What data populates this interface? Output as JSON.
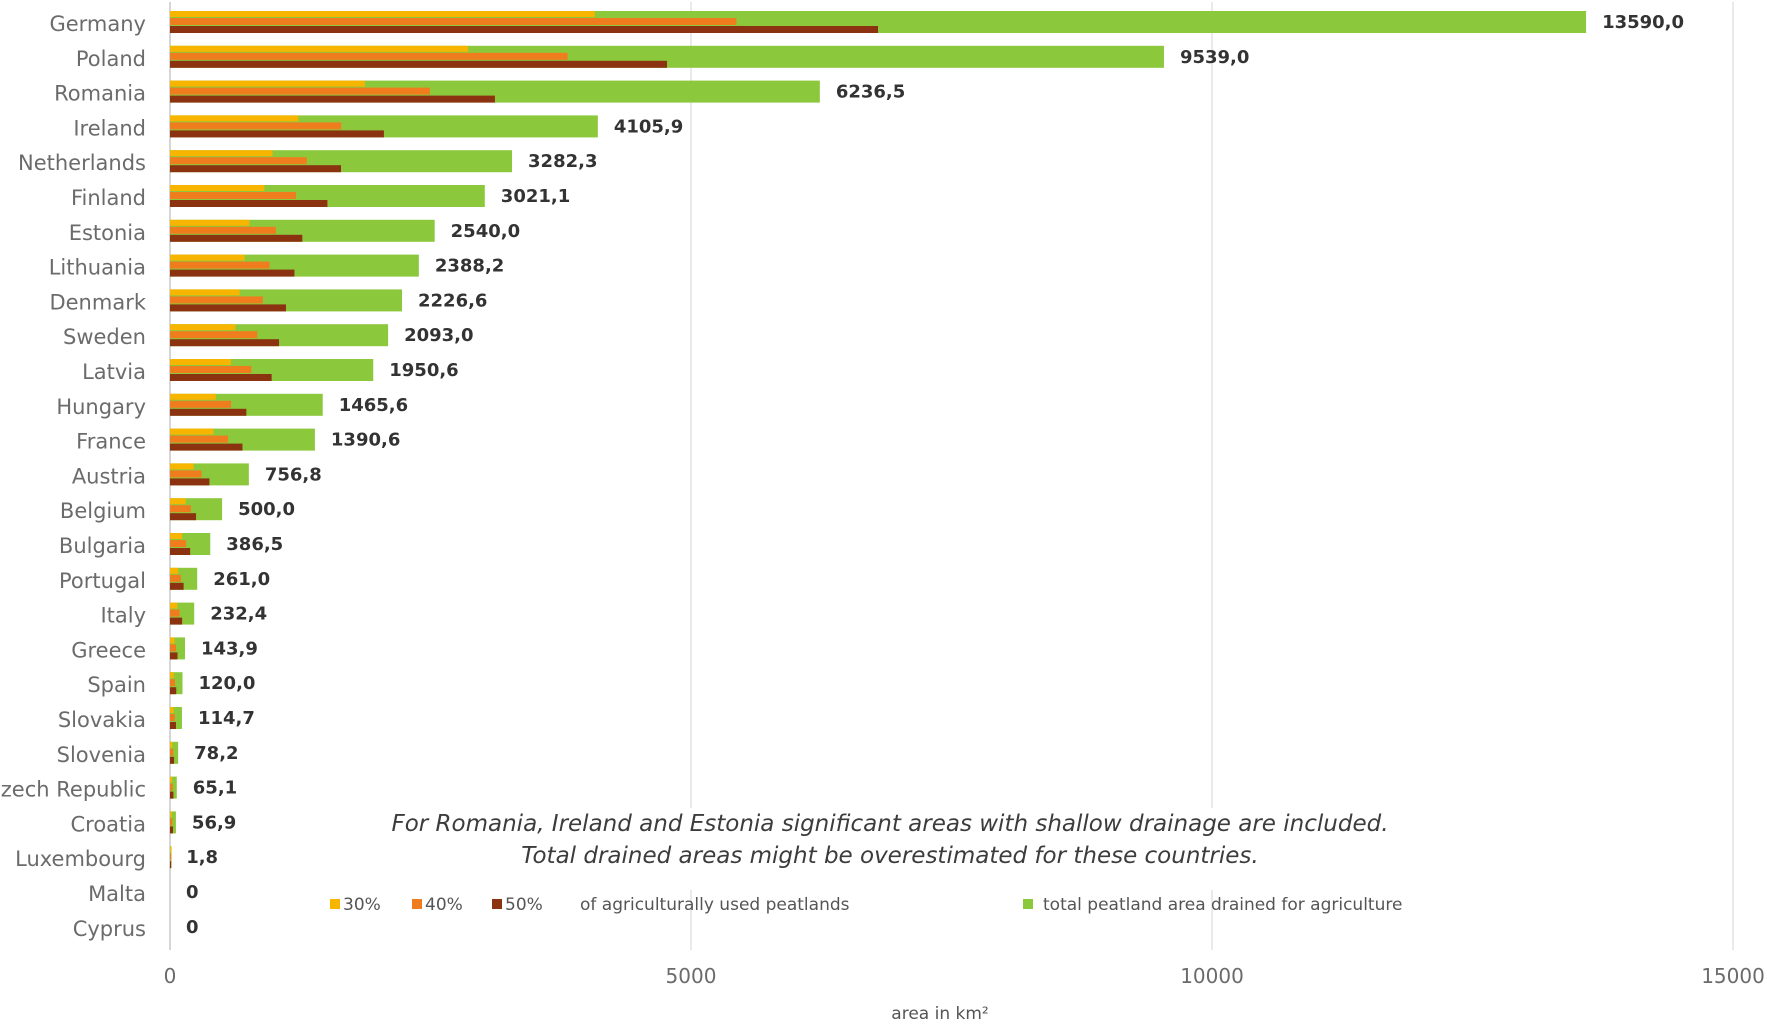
{
  "chart_data": {
    "type": "bar",
    "orientation": "horizontal",
    "xlabel": "area in km²",
    "xlim": [
      0,
      15000
    ],
    "xticks": [
      "0",
      "5000",
      "10000",
      "15000"
    ],
    "grid": true,
    "legend_placement": "bottom",
    "legend": {
      "pct_series": [
        "30%",
        "40%",
        "50%"
      ],
      "pct_suffix": "of agriculturally used peatlands",
      "total_label": "total peatland area drained for agriculture"
    },
    "annotation": [
      "For Romania, Ireland and Estonia significant areas with shallow drainage are included.",
      "Total drained areas might be overestimated for these countries."
    ],
    "categories": [
      "Germany",
      "Poland",
      "Romania",
      "Ireland",
      "Netherlands",
      "Finland",
      "Estonia",
      "Lithuania",
      "Denmark",
      "Sweden",
      "Latvia",
      "Hungary",
      "France",
      "Austria",
      "Belgium",
      "Bulgaria",
      "Portugal",
      "Italy",
      "Greece",
      "Spain",
      "Slovakia",
      "Slovenia",
      "Czech Republic",
      "Croatia",
      "Luxembourg",
      "Malta",
      "Cyprus"
    ],
    "value_labels": [
      "13590,0",
      "9539,0",
      "6236,5",
      "4105,9",
      "3282,3",
      "3021,1",
      "2540,0",
      "2388,2",
      "2226,6",
      "2093,0",
      "1950,6",
      "1465,6",
      "1390,6",
      "756,8",
      "500,0",
      "386,5",
      "261,0",
      "232,4",
      "143,9",
      "120,0",
      "114,7",
      "78,2",
      "65,1",
      "56,9",
      "1,8",
      "0",
      "0"
    ],
    "series": [
      {
        "name": "total peatland area drained for agriculture",
        "color": "#8cc83c",
        "values": [
          13590.0,
          9539.0,
          6236.5,
          4105.9,
          3282.3,
          3021.1,
          2540.0,
          2388.2,
          2226.6,
          2093.0,
          1950.6,
          1465.6,
          1390.6,
          756.8,
          500.0,
          386.5,
          261.0,
          232.4,
          143.9,
          120.0,
          114.7,
          78.2,
          65.1,
          56.9,
          1.8,
          0,
          0
        ]
      },
      {
        "name": "30%",
        "color": "#f7b500",
        "values": [
          4077.0,
          2861.7,
          1871.0,
          1231.8,
          984.7,
          906.3,
          762.0,
          716.5,
          668.0,
          627.9,
          585.2,
          439.7,
          417.2,
          227.0,
          150.0,
          116.0,
          78.3,
          69.7,
          43.2,
          36.0,
          34.4,
          23.5,
          19.5,
          17.1,
          0.5,
          0,
          0
        ]
      },
      {
        "name": "40%",
        "color": "#ef7d1e",
        "values": [
          5436.0,
          3815.6,
          2494.6,
          1642.4,
          1312.9,
          1208.4,
          1016.0,
          955.3,
          890.6,
          837.2,
          780.2,
          586.2,
          556.2,
          302.7,
          200.0,
          154.6,
          104.4,
          93.0,
          57.6,
          48.0,
          45.9,
          31.3,
          26.0,
          22.8,
          0.7,
          0,
          0
        ]
      },
      {
        "name": "50%",
        "color": "#8b3210",
        "values": [
          6795.0,
          4769.5,
          3118.3,
          2053.0,
          1641.2,
          1510.6,
          1270.0,
          1194.1,
          1113.3,
          1046.5,
          975.3,
          732.8,
          695.3,
          378.4,
          250.0,
          193.3,
          130.5,
          116.2,
          72.0,
          60.0,
          57.4,
          39.1,
          32.6,
          28.5,
          0.9,
          0,
          0
        ]
      }
    ]
  }
}
